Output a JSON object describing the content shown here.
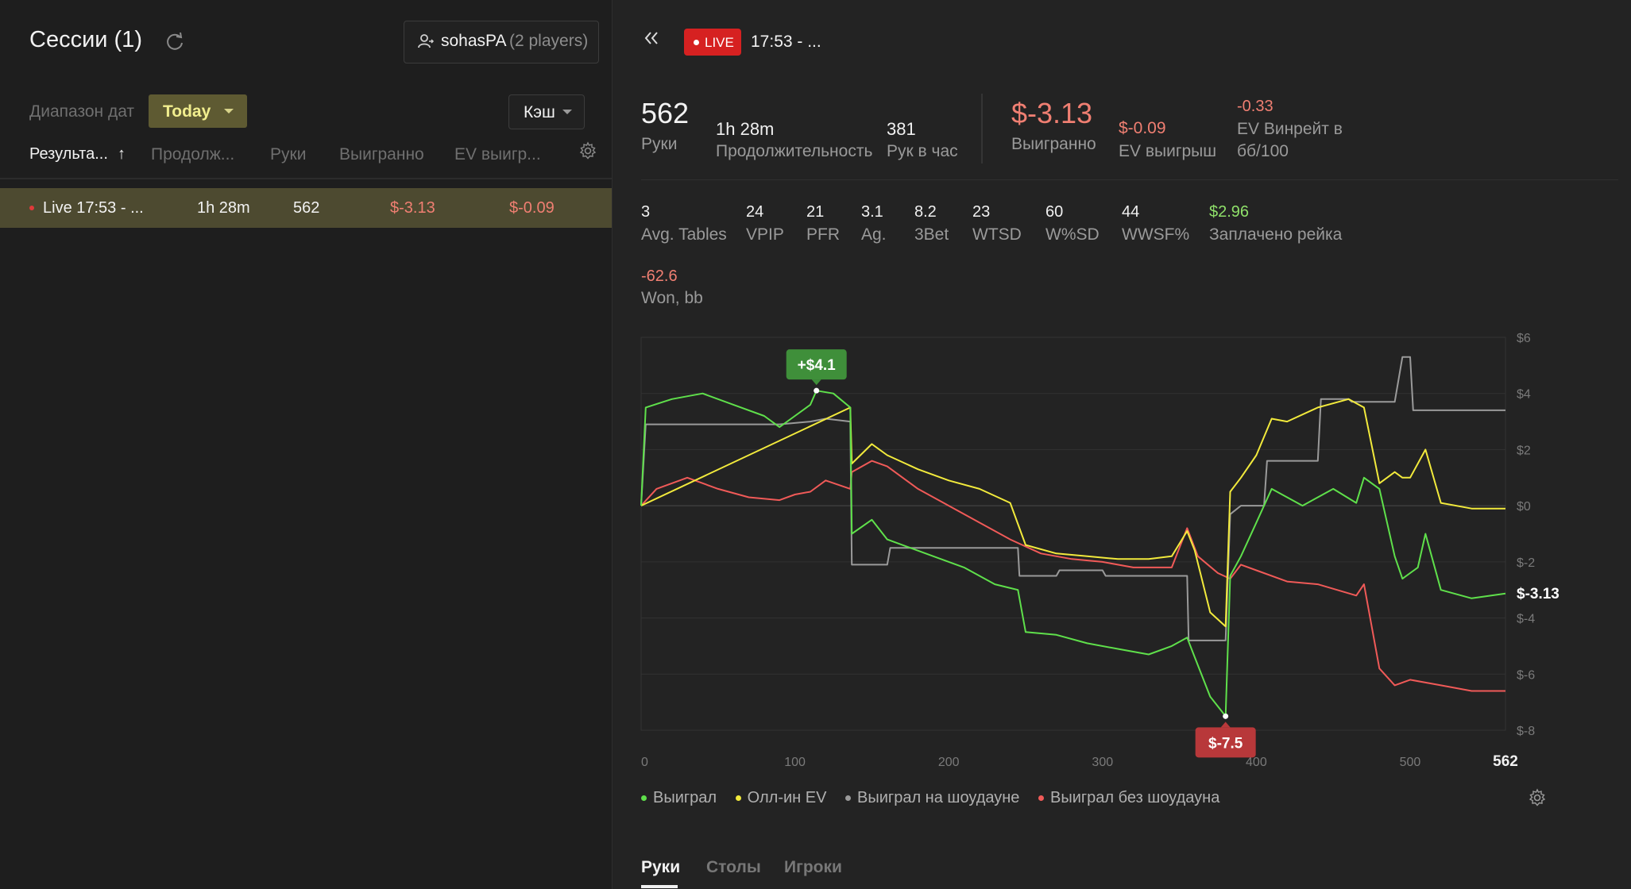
{
  "sessions": {
    "title": "Сессии (1)",
    "player_name": "sohasPA",
    "player_count": "(2 players)",
    "date_range_label": "Диапазон дат",
    "date_range_value": "Today",
    "game_type": "Кэш",
    "columns": [
      "Результа...",
      "Продолж...",
      "Руки",
      "Выигранно",
      "EV выигр..."
    ],
    "sort_indicator": "↑",
    "rows": [
      {
        "name": "Live 17:53 - ...",
        "duration": "1h 28m",
        "hands": "562",
        "won": "$-3.13",
        "ev": "$-0.09"
      }
    ]
  },
  "header": {
    "live_badge": "LIVE",
    "session_title": "17:53 - ..."
  },
  "summary": {
    "hands_value": "562",
    "hands_label": "Руки",
    "duration_value": "1h 28m",
    "duration_label": "Продолжительность",
    "hph_value": "381",
    "hph_label": "Рук в час",
    "won_value": "$-3.13",
    "won_label": "Выигранно",
    "ev_value": "$-0.09",
    "ev_label": "EV выигрыш",
    "evbb_value": "-0.33",
    "evbb_label_1": "EV Винрейт в",
    "evbb_label_2": "бб/100"
  },
  "stats": [
    {
      "value": "3",
      "label": "Avg. Tables"
    },
    {
      "value": "24",
      "label": "VPIP"
    },
    {
      "value": "21",
      "label": "PFR"
    },
    {
      "value": "3.1",
      "label": "Ag."
    },
    {
      "value": "8.2",
      "label": "3Bet"
    },
    {
      "value": "23",
      "label": "WTSD"
    },
    {
      "value": "60",
      "label": "W%SD"
    },
    {
      "value": "44",
      "label": "WWSF%"
    },
    {
      "value": "$2.96",
      "label": "Заплачено рейка"
    }
  ],
  "won_bb": {
    "value": "-62.6",
    "label": "Won, bb"
  },
  "tabs": [
    "Руки",
    "Столы",
    "Игроки"
  ],
  "colors": {
    "won": "#5fe04b",
    "allin_ev": "#f2ea3c",
    "showdown": "#9a9a9a",
    "non_showdown": "#f05a58",
    "accent": "#e3e38a",
    "live": "#d62121"
  },
  "chart_data": {
    "type": "line",
    "xlabel": "",
    "ylabel": "",
    "xlim": [
      0,
      562
    ],
    "ylim": [
      -8,
      6
    ],
    "x_ticks": [
      "0",
      "100",
      "200",
      "300",
      "400",
      "500",
      "562"
    ],
    "y_ticks": [
      "$6",
      "$4",
      "$2",
      "$0",
      "$-2",
      "$-4",
      "$-6",
      "$-8"
    ],
    "end_label": "$-3.13",
    "max_annotation": {
      "x": 114,
      "y": 4.1,
      "label": "+$4.1"
    },
    "min_annotation": {
      "x": 380,
      "y": -7.5,
      "label": "$-7.5"
    },
    "legend_position": "bottom-left",
    "series": [
      {
        "name": "Выиграл",
        "color": "#5fe04b",
        "points": [
          [
            0,
            0
          ],
          [
            3,
            3.5
          ],
          [
            20,
            3.8
          ],
          [
            40,
            4.0
          ],
          [
            60,
            3.6
          ],
          [
            80,
            3.2
          ],
          [
            90,
            2.8
          ],
          [
            100,
            3.2
          ],
          [
            110,
            3.6
          ],
          [
            114,
            4.1
          ],
          [
            125,
            4.0
          ],
          [
            136,
            3.5
          ],
          [
            137,
            -1.0
          ],
          [
            150,
            -0.5
          ],
          [
            160,
            -1.2
          ],
          [
            175,
            -1.5
          ],
          [
            190,
            -1.8
          ],
          [
            210,
            -2.2
          ],
          [
            230,
            -2.8
          ],
          [
            245,
            -3.0
          ],
          [
            250,
            -4.5
          ],
          [
            270,
            -4.6
          ],
          [
            290,
            -4.9
          ],
          [
            310,
            -5.1
          ],
          [
            330,
            -5.3
          ],
          [
            345,
            -5.0
          ],
          [
            355,
            -4.7
          ],
          [
            360,
            -5.4
          ],
          [
            370,
            -6.8
          ],
          [
            380,
            -7.5
          ],
          [
            383,
            -2.5
          ],
          [
            390,
            -1.8
          ],
          [
            400,
            -0.6
          ],
          [
            410,
            0.6
          ],
          [
            430,
            0.0
          ],
          [
            440,
            0.3
          ],
          [
            450,
            0.6
          ],
          [
            465,
            0.1
          ],
          [
            470,
            1.0
          ],
          [
            480,
            0.6
          ],
          [
            490,
            -1.8
          ],
          [
            495,
            -2.6
          ],
          [
            505,
            -2.2
          ],
          [
            510,
            -1.0
          ],
          [
            520,
            -3.0
          ],
          [
            540,
            -3.3
          ],
          [
            562,
            -3.13
          ]
        ]
      },
      {
        "name": "Олл-ин EV",
        "color": "#f2ea3c",
        "points": [
          [
            0,
            0
          ],
          [
            136,
            3.5
          ],
          [
            137,
            1.5
          ],
          [
            150,
            2.2
          ],
          [
            160,
            1.8
          ],
          [
            180,
            1.3
          ],
          [
            200,
            0.9
          ],
          [
            220,
            0.6
          ],
          [
            240,
            0.1
          ],
          [
            250,
            -1.4
          ],
          [
            270,
            -1.7
          ],
          [
            290,
            -1.8
          ],
          [
            310,
            -1.9
          ],
          [
            330,
            -1.9
          ],
          [
            345,
            -1.8
          ],
          [
            355,
            -0.9
          ],
          [
            360,
            -1.6
          ],
          [
            370,
            -3.8
          ],
          [
            380,
            -4.3
          ],
          [
            383,
            0.5
          ],
          [
            390,
            1.0
          ],
          [
            400,
            1.8
          ],
          [
            410,
            3.1
          ],
          [
            420,
            3.0
          ],
          [
            440,
            3.5
          ],
          [
            460,
            3.8
          ],
          [
            470,
            3.5
          ],
          [
            480,
            0.8
          ],
          [
            490,
            1.2
          ],
          [
            495,
            1.0
          ],
          [
            500,
            1.0
          ],
          [
            510,
            2.0
          ],
          [
            520,
            0.1
          ],
          [
            540,
            -0.1
          ],
          [
            562,
            -0.1
          ]
        ]
      },
      {
        "name": "Выиграл на шоудауне",
        "color": "#9a9a9a",
        "points": [
          [
            0,
            0
          ],
          [
            3,
            2.9
          ],
          [
            90,
            2.9
          ],
          [
            110,
            3.0
          ],
          [
            120,
            3.1
          ],
          [
            136,
            3.0
          ],
          [
            137,
            -2.1
          ],
          [
            160,
            -2.1
          ],
          [
            162,
            -1.5
          ],
          [
            245,
            -1.5
          ],
          [
            246,
            -2.5
          ],
          [
            270,
            -2.5
          ],
          [
            272,
            -2.3
          ],
          [
            300,
            -2.3
          ],
          [
            302,
            -2.5
          ],
          [
            355,
            -2.5
          ],
          [
            356,
            -4.8
          ],
          [
            380,
            -4.8
          ],
          [
            383,
            -0.3
          ],
          [
            390,
            0.0
          ],
          [
            405,
            0.0
          ],
          [
            407,
            1.6
          ],
          [
            440,
            1.6
          ],
          [
            442,
            3.8
          ],
          [
            460,
            3.8
          ],
          [
            462,
            3.7
          ],
          [
            490,
            3.7
          ],
          [
            495,
            5.3
          ],
          [
            500,
            5.3
          ],
          [
            502,
            3.4
          ],
          [
            562,
            3.4
          ]
        ]
      },
      {
        "name": "Выиграл без шоудауна",
        "color": "#f05a58",
        "points": [
          [
            0,
            0
          ],
          [
            10,
            0.6
          ],
          [
            30,
            1.0
          ],
          [
            50,
            0.6
          ],
          [
            70,
            0.3
          ],
          [
            90,
            0.2
          ],
          [
            100,
            0.4
          ],
          [
            110,
            0.5
          ],
          [
            120,
            0.9
          ],
          [
            136,
            0.6
          ],
          [
            137,
            1.2
          ],
          [
            150,
            1.6
          ],
          [
            160,
            1.4
          ],
          [
            180,
            0.6
          ],
          [
            200,
            0.0
          ],
          [
            220,
            -0.6
          ],
          [
            240,
            -1.2
          ],
          [
            260,
            -1.7
          ],
          [
            280,
            -1.9
          ],
          [
            300,
            -2.0
          ],
          [
            320,
            -2.2
          ],
          [
            345,
            -2.2
          ],
          [
            355,
            -0.8
          ],
          [
            362,
            -1.8
          ],
          [
            375,
            -2.4
          ],
          [
            383,
            -2.6
          ],
          [
            390,
            -2.1
          ],
          [
            400,
            -2.3
          ],
          [
            420,
            -2.7
          ],
          [
            440,
            -2.8
          ],
          [
            465,
            -3.2
          ],
          [
            470,
            -2.8
          ],
          [
            480,
            -5.8
          ],
          [
            490,
            -6.4
          ],
          [
            500,
            -6.2
          ],
          [
            520,
            -6.4
          ],
          [
            540,
            -6.6
          ],
          [
            562,
            -6.6
          ]
        ]
      }
    ]
  }
}
